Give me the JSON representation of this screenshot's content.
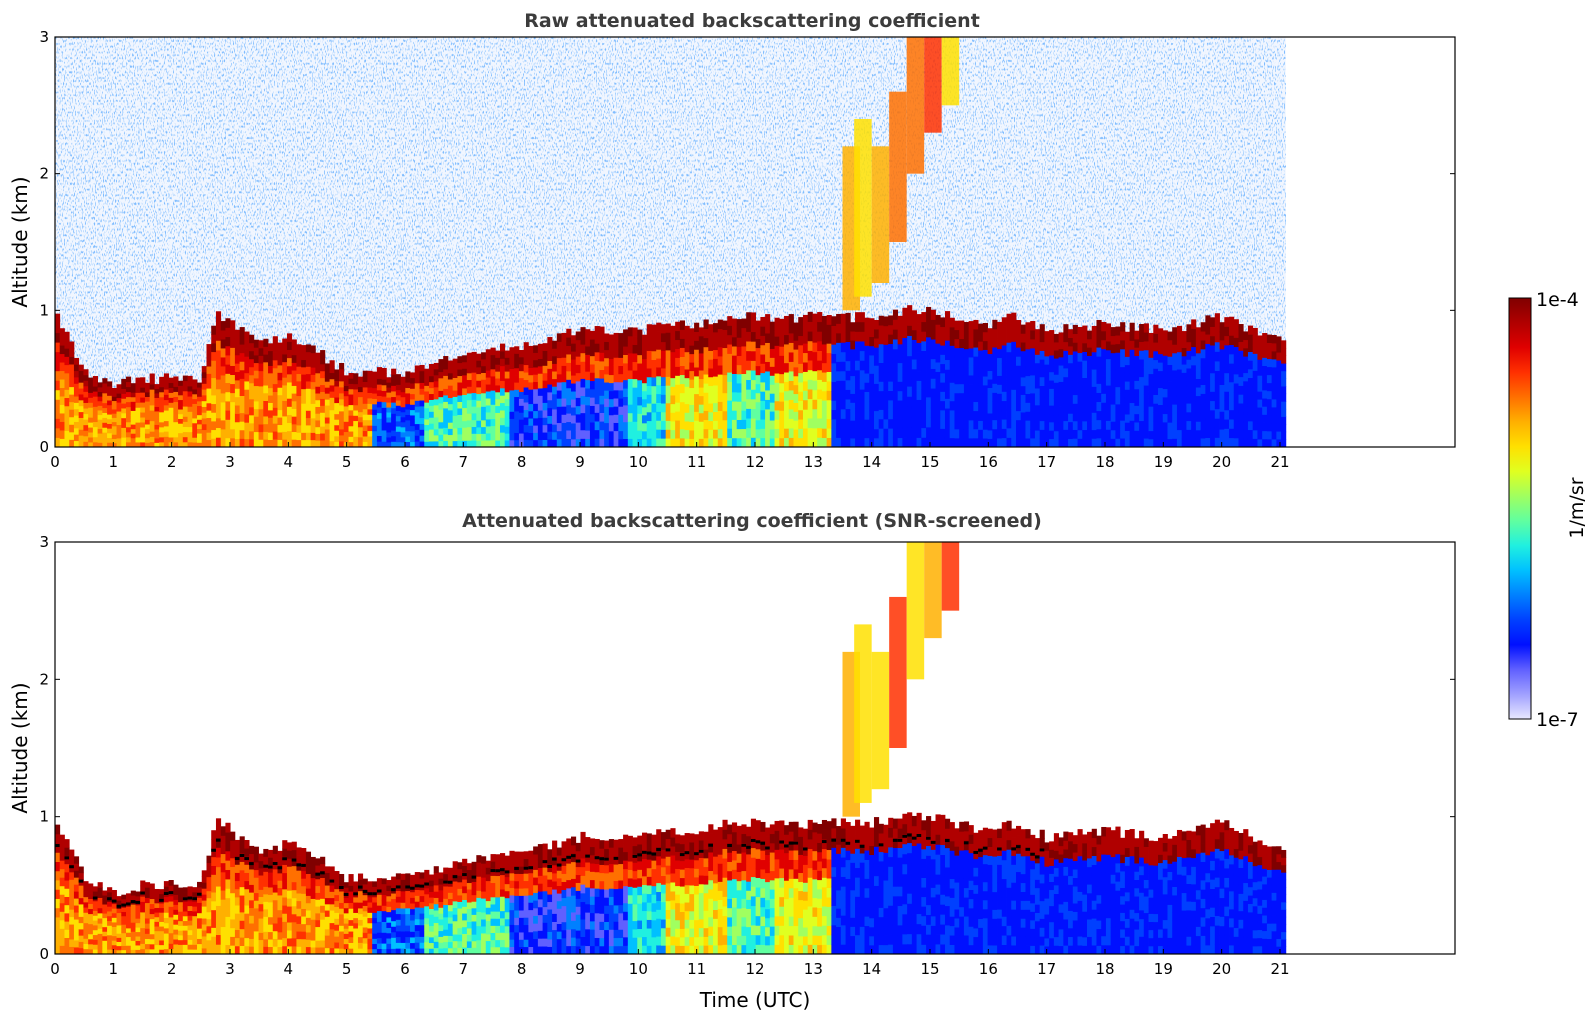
{
  "chart_data": [
    {
      "type": "heatmap",
      "title": "Raw attenuated backscattering coefficient",
      "xlabel": "",
      "ylabel": "Altitude (km)",
      "xlim": [
        0,
        24
      ],
      "ylim": [
        0,
        3
      ],
      "x_data_end": 21.1,
      "x_ticks": [
        "0",
        "1",
        "2",
        "3",
        "4",
        "5",
        "6",
        "7",
        "8",
        "9",
        "10",
        "11",
        "12",
        "13",
        "14",
        "15",
        "16",
        "17",
        "18",
        "19",
        "20",
        "21"
      ],
      "y_ticks": [
        "0",
        "1",
        "2",
        "3"
      ],
      "layer_top_km": [
        [
          0,
          1.0
        ],
        [
          0.5,
          0.55
        ],
        [
          1,
          0.45
        ],
        [
          1.5,
          0.5
        ],
        [
          2,
          0.5
        ],
        [
          2.5,
          0.5
        ],
        [
          2.8,
          1.0
        ],
        [
          3,
          0.9
        ],
        [
          3.5,
          0.75
        ],
        [
          4,
          0.8
        ],
        [
          4.5,
          0.7
        ],
        [
          5,
          0.55
        ],
        [
          5.5,
          0.55
        ],
        [
          6,
          0.55
        ],
        [
          6.5,
          0.6
        ],
        [
          7,
          0.7
        ],
        [
          7.5,
          0.7
        ],
        [
          8,
          0.75
        ],
        [
          8.5,
          0.8
        ],
        [
          9,
          0.85
        ],
        [
          9.5,
          0.85
        ],
        [
          10,
          0.85
        ],
        [
          10.5,
          0.9
        ],
        [
          11,
          0.9
        ],
        [
          11.5,
          0.95
        ],
        [
          12,
          0.95
        ],
        [
          12.5,
          0.95
        ],
        [
          13,
          0.95
        ],
        [
          13.5,
          0.95
        ],
        [
          14,
          0.95
        ],
        [
          14.5,
          1.0
        ],
        [
          15,
          1.0
        ],
        [
          15.5,
          0.95
        ],
        [
          16,
          0.9
        ],
        [
          16.5,
          0.95
        ],
        [
          17,
          0.85
        ],
        [
          18,
          0.9
        ],
        [
          19,
          0.85
        ],
        [
          20,
          0.95
        ],
        [
          21.1,
          0.75
        ]
      ],
      "colorbar": {
        "min": "1e-7",
        "max": "1e-4",
        "label": "1/m/sr",
        "scale": "log"
      },
      "grid": false
    },
    {
      "type": "heatmap",
      "title": "Attenuated backscattering coefficient (SNR-screened)",
      "xlabel": "Time (UTC)",
      "ylabel": "Altitude (km)",
      "xlim": [
        0,
        24
      ],
      "ylim": [
        0,
        3
      ],
      "x_data_end": 21.1,
      "x_ticks": [
        "0",
        "1",
        "2",
        "3",
        "4",
        "5",
        "6",
        "7",
        "8",
        "9",
        "10",
        "11",
        "12",
        "13",
        "14",
        "15",
        "16",
        "17",
        "18",
        "19",
        "20",
        "21"
      ],
      "y_ticks": [
        "0",
        "1",
        "2",
        "3"
      ],
      "colorbar": {
        "min": "1e-7",
        "max": "1e-4",
        "label": "1/m/sr",
        "scale": "log"
      },
      "grid": false
    }
  ],
  "colorbar": {
    "max_label": "1e-4",
    "min_label": "1e-7",
    "label": "1/m/sr",
    "colors": [
      "#800000",
      "#b00000",
      "#e00000",
      "#ff3000",
      "#ff7000",
      "#ffb000",
      "#ffe000",
      "#e0ff20",
      "#a0ff60",
      "#60ffa0",
      "#20f0e0",
      "#00c0ff",
      "#0080ff",
      "#0040ff",
      "#0010ff",
      "#6060ff",
      "#a0a0ff",
      "#e8e8ff"
    ]
  }
}
